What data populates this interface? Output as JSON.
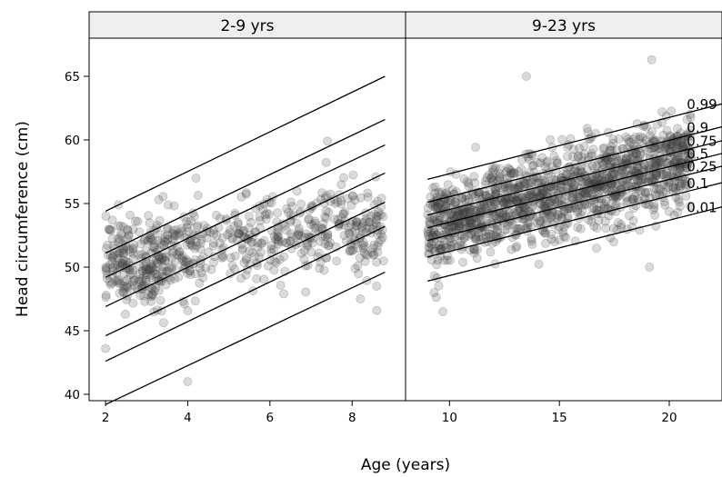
{
  "colors": {
    "strip_fill": "#efefef",
    "frame": "#000000",
    "point_fill": "rgba(70,70,70,0.20)",
    "point_stroke": "rgba(40,40,40,0.22)",
    "line": "#000000"
  },
  "chart_data": {
    "type": "scatter",
    "xlabel": "Age (years)",
    "ylabel": "Head circumference (cm)",
    "ylim": [
      39.5,
      68
    ],
    "y_ticks": [
      40,
      45,
      50,
      55,
      60,
      65
    ],
    "grid": false,
    "panels": [
      {
        "strip_label": "2-9 yrs",
        "xlim": [
          1.6,
          9.3
        ],
        "x_ticks": [
          2,
          4,
          6,
          8
        ],
        "quantile_lines": [
          {
            "name": "0.99",
            "x": [
              2,
              8.8
            ],
            "y": [
              54.4,
              65.0
            ]
          },
          {
            "name": "0.9",
            "x": [
              2,
              8.8
            ],
            "y": [
              51.1,
              61.6
            ]
          },
          {
            "name": "0.75",
            "x": [
              2,
              8.8
            ],
            "y": [
              49.2,
              59.6
            ]
          },
          {
            "name": "0.5",
            "x": [
              2,
              8.8
            ],
            "y": [
              46.9,
              57.4
            ]
          },
          {
            "name": "0.25",
            "x": [
              2,
              8.8
            ],
            "y": [
              44.6,
              55.1
            ]
          },
          {
            "name": "0.1",
            "x": [
              2,
              8.8
            ],
            "y": [
              42.6,
              53.2
            ]
          },
          {
            "name": "0.01",
            "x": [
              2,
              8.8
            ],
            "y": [
              39.2,
              49.6
            ]
          }
        ],
        "point_clusters": [
          {
            "x_range": [
              2.0,
              3.4
            ],
            "y_mean": 50.4,
            "y_sd": 1.7,
            "n": 230
          },
          {
            "x_range": [
              3.4,
              4.4
            ],
            "y_mean": 51.2,
            "y_sd": 1.6,
            "n": 110
          },
          {
            "x_range": [
              4.4,
              5.2
            ],
            "y_mean": 51.6,
            "y_sd": 1.7,
            "n": 40
          },
          {
            "x_range": [
              5.2,
              6.4
            ],
            "y_mean": 52.0,
            "y_sd": 1.6,
            "n": 100
          },
          {
            "x_range": [
              6.4,
              7.2
            ],
            "y_mean": 52.6,
            "y_sd": 1.6,
            "n": 60
          },
          {
            "x_range": [
              7.2,
              8.8
            ],
            "y_mean": 53.0,
            "y_sd": 1.7,
            "n": 150
          }
        ],
        "notable_points": [
          {
            "x": 4.0,
            "y": 41.0
          },
          {
            "x": 4.2,
            "y": 57.0
          },
          {
            "x": 7.4,
            "y": 59.9
          },
          {
            "x": 2.0,
            "y": 43.6
          },
          {
            "x": 8.6,
            "y": 46.6
          },
          {
            "x": 8.2,
            "y": 47.5
          }
        ]
      },
      {
        "strip_label": "9-23 yrs",
        "xlim": [
          8.0,
          22.4
        ],
        "x_ticks": [
          10,
          15,
          20
        ],
        "quantile_lines": [
          {
            "name": "0.99",
            "x": [
              9,
              23
            ],
            "y": [
              56.9,
              63.1
            ]
          },
          {
            "name": "0.9",
            "x": [
              9,
              23
            ],
            "y": [
              55.1,
              61.3
            ]
          },
          {
            "name": "0.75",
            "x": [
              9,
              23
            ],
            "y": [
              54.1,
              60.2
            ]
          },
          {
            "name": "0.5",
            "x": [
              9,
              23
            ],
            "y": [
              53.1,
              59.2
            ]
          },
          {
            "name": "0.25",
            "x": [
              9,
              23
            ],
            "y": [
              52.1,
              58.2
            ]
          },
          {
            "name": "0.1",
            "x": [
              9,
              23
            ],
            "y": [
              50.8,
              56.9
            ]
          },
          {
            "name": "0.01",
            "x": [
              9,
              23
            ],
            "y": [
              48.9,
              55.0
            ]
          }
        ],
        "point_clusters": [
          {
            "x_range": [
              9.0,
              21.0
            ],
            "y_at_x9": 53.1,
            "slope": 0.44,
            "y_sd": 1.7,
            "n": 1400
          }
        ],
        "notable_points": [
          {
            "x": 13.5,
            "y": 65.0
          },
          {
            "x": 19.2,
            "y": 66.3
          },
          {
            "x": 19.1,
            "y": 50.0
          },
          {
            "x": 9.3,
            "y": 48.0
          },
          {
            "x": 9.7,
            "y": 46.5
          }
        ]
      }
    ]
  }
}
